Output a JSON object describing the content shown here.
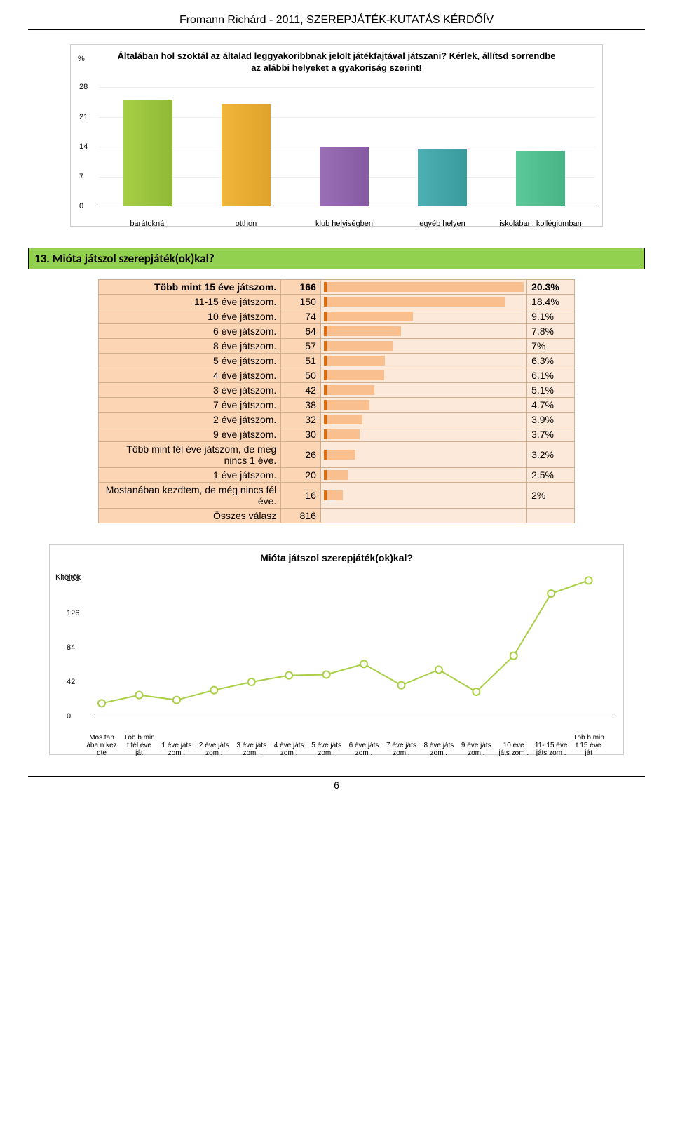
{
  "header": "Fromann Richárd - 2011, SZEREPJÁTÉK-KUTATÁS KÉRDŐÍV",
  "page_number": "6",
  "bar_chart": {
    "y_axis_label": "%",
    "title": "Általában hol szoktál az általad leggyakoribbnak jelölt játékfajtával játszani? Kérlek, állítsd sorrendbe az alábbi helyeket a gyakoriság szerint!",
    "ylim_max": 28,
    "yticks": [
      0,
      7,
      14,
      21,
      28
    ],
    "categories": [
      "barátoknál",
      "otthon",
      "klub helyiségben",
      "egyéb helyen",
      "iskolában, kollégiumban"
    ],
    "values": [
      25,
      24,
      14,
      13.5,
      13
    ],
    "colors": [
      "#a8cf45",
      "#f2b63c",
      "#9b6fb5",
      "#4db0b2",
      "#5cc99b"
    ],
    "colors_end": [
      "#8fb936",
      "#e0a22a",
      "#855aa0",
      "#3a9a9c",
      "#48b486"
    ]
  },
  "section": {
    "title": "13. Mióta játszol szerepjáték(ok)kal?"
  },
  "table": {
    "max_value": 166,
    "rows": [
      {
        "label": "Több mint 15 éve játszom.",
        "value": "166",
        "pct": "20.3%",
        "bold": true
      },
      {
        "label": "11-15 éve játszom.",
        "value": "150",
        "pct": "18.4%"
      },
      {
        "label": "10 éve játszom.",
        "value": "74",
        "pct": "9.1%"
      },
      {
        "label": "6 éve játszom.",
        "value": "64",
        "pct": "7.8%"
      },
      {
        "label": "8 éve játszom.",
        "value": "57",
        "pct": "7%"
      },
      {
        "label": "5 éve játszom.",
        "value": "51",
        "pct": "6.3%"
      },
      {
        "label": "4 éve játszom.",
        "value": "50",
        "pct": "6.1%"
      },
      {
        "label": "3 éve játszom.",
        "value": "42",
        "pct": "5.1%"
      },
      {
        "label": "7 éve játszom.",
        "value": "38",
        "pct": "4.7%"
      },
      {
        "label": "2 éve játszom.",
        "value": "32",
        "pct": "3.9%"
      },
      {
        "label": "9 éve játszom.",
        "value": "30",
        "pct": "3.7%"
      },
      {
        "label": "Több mint fél éve játszom, de még nincs 1 éve.",
        "value": "26",
        "pct": "3.2%"
      },
      {
        "label": "1 éve játszom.",
        "value": "20",
        "pct": "2.5%"
      },
      {
        "label": "Mostanában kezdtem, de még nincs fél éve.",
        "value": "16",
        "pct": "2%"
      },
      {
        "label": "Összes válasz",
        "value": "816",
        "pct": "",
        "total": true
      }
    ]
  },
  "line_chart": {
    "title": "Mióta játszol szerepjáték(ok)kal?",
    "y_axis_label": "Kitöltők",
    "ylim_max": 168,
    "yticks": [
      0,
      42,
      84,
      126,
      168
    ],
    "line_color": "#a8cf45",
    "point_color": "#a8cf45",
    "points": [
      {
        "label": "Mos tan ába n kez dte",
        "value": 16
      },
      {
        "label": "Töb b min t fél éve ját",
        "value": 26
      },
      {
        "label": "1 éve játs zom .",
        "value": 20
      },
      {
        "label": "2 éve játs zom .",
        "value": 32
      },
      {
        "label": "3 éve játs zom .",
        "value": 42
      },
      {
        "label": "4 éve játs zom .",
        "value": 50
      },
      {
        "label": "5 éve játs zom .",
        "value": 51
      },
      {
        "label": "6 éve játs zom .",
        "value": 64
      },
      {
        "label": "7 éve játs zom .",
        "value": 38
      },
      {
        "label": "8 éve játs zom .",
        "value": 57
      },
      {
        "label": "9 éve játs zom .",
        "value": 30
      },
      {
        "label": "10 éve játs zom .",
        "value": 74
      },
      {
        "label": "11- 15 éve játs zom .",
        "value": 150
      },
      {
        "label": "Töb b min t 15 éve ját",
        "value": 166
      }
    ]
  }
}
